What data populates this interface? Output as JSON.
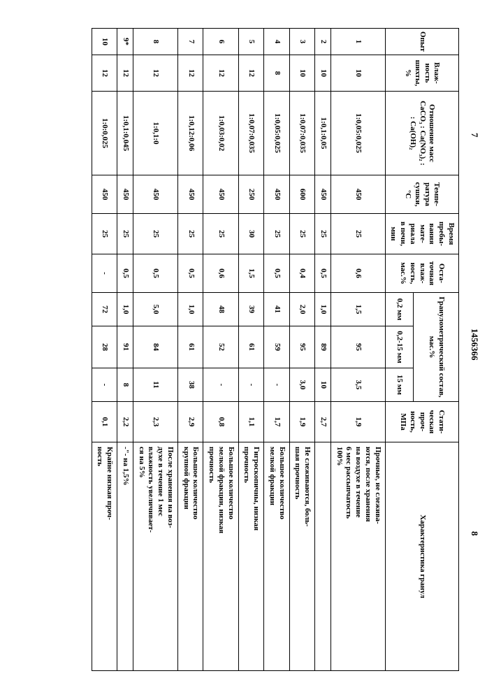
{
  "doc_number": "1456366",
  "page_left": "7",
  "page_right": "8",
  "headers": {
    "opyt": "Опыт",
    "vlazhnost": "Влаж-\nность\nшихты,\n%",
    "ratio": "Отношение масс\nCaCO₃ : Ca(NO₃)₂ :\n: Ca(OH)₂",
    "temp": "Темпе-\nратура\nсушки,\n°C",
    "time": "Время\nпребы-\nвания\nмате-\nриала\nв печи,\nмин",
    "ost": "Оста-\nточная\nвлаж-\nность,\nмас.%",
    "gran_top": "Гранулометрический состав,\nмас.%",
    "g1": "0,2 мм",
    "g2": "0,2-15 мм",
    "g3": "15 мм",
    "strength": "Стати-\nческая\nпроч-\nность,\nМПа",
    "desc": "Характеристика гранул"
  },
  "rows": [
    {
      "n": "1",
      "vl": "10",
      "ratio": "1:0,05:0,025",
      "temp": "450",
      "time": "25",
      "ost": "0,6",
      "g1": "1,5",
      "g2": "95",
      "g3": "3,5",
      "str": "1,9",
      "desc": "Прочные, не слежива-\nются, после хранения\nна воздухе в течение\n6 мес рассыпчатость\n100%"
    },
    {
      "n": "2",
      "vl": "10",
      "ratio": "1:0,1:0,05",
      "temp": "450",
      "time": "25",
      "ost": "0,5",
      "g1": "1,0",
      "g2": "89",
      "g3": "10",
      "str": "2,7",
      "desc": ""
    },
    {
      "n": "3",
      "vl": "10",
      "ratio": "1:0,07:0,035",
      "temp": "600",
      "time": "25",
      "ost": "0,4",
      "g1": "2,0",
      "g2": "95",
      "g3": "3,0",
      "str": "1,9",
      "desc": "Не слеживаются, боль-\nшая прочность"
    },
    {
      "n": "4",
      "vl": "8",
      "ratio": "1:0,05:0,025",
      "temp": "450",
      "time": "25",
      "ost": "0,5",
      "g1": "41",
      "g2": "59",
      "g3": "-",
      "str": "1,7",
      "desc": "Большое количество\nмелкой фракции"
    },
    {
      "n": "5",
      "vl": "12",
      "ratio": "1:0,07:0,035",
      "temp": "250",
      "time": "30",
      "ost": "1,5",
      "g1": "39",
      "g2": "61",
      "g3": "-",
      "str": "1,1",
      "desc": "Гигроскопичны, низкая\nпрочность"
    },
    {
      "n": "6",
      "vl": "12",
      "ratio": "1:0,03:0,02",
      "temp": "450",
      "time": "25",
      "ost": "0,6",
      "g1": "48",
      "g2": "52",
      "g3": "-",
      "str": "0,8",
      "desc": "Большое количество\nмелкой фракции, низкая\nпрочность"
    },
    {
      "n": "7",
      "vl": "12",
      "ratio": "1:0,12:0,06",
      "temp": "450",
      "time": "25",
      "ost": "0,5",
      "g1": "1,0",
      "g2": "61",
      "g3": "38",
      "str": "2,9",
      "desc": "Большое количество\nкрупной фракции"
    },
    {
      "n": "8",
      "vl": "12",
      "ratio": "1:0,1:0",
      "temp": "450",
      "time": "25",
      "ost": "0,5",
      "g1": "5,0",
      "g2": "84",
      "g3": "11",
      "str": "2,3",
      "desc": "После хранения на воз-\nдухе в течение 1 мес\nвлажность увеличивает-\nся на 5%"
    },
    {
      "n": "9*",
      "vl": "12",
      "ratio": "1:0,1:0,045",
      "temp": "450",
      "time": "25",
      "ost": "0,5",
      "g1": "1,0",
      "g2": "91",
      "g3": "8",
      "str": "2,2",
      "desc": "-\"- на 1,5%"
    },
    {
      "n": "10",
      "vl": "12",
      "ratio": "1:0:0,025",
      "temp": "450",
      "time": "25",
      "ost": "-",
      "g1": "72",
      "g2": "28",
      "g3": "-",
      "str": "0,1",
      "desc": "Крайне низкая проч-\nность"
    }
  ]
}
